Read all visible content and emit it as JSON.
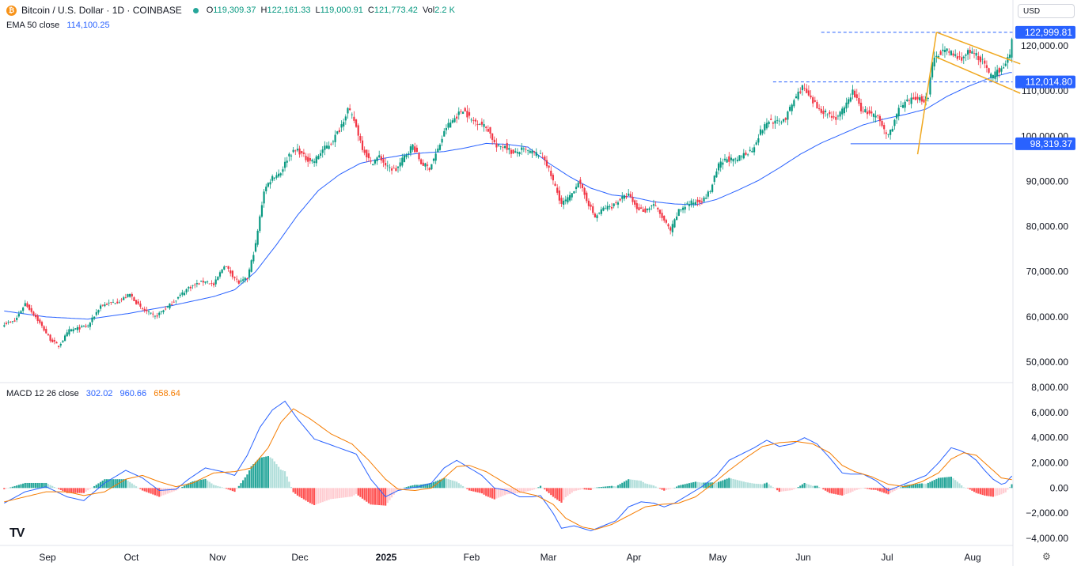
{
  "header": {
    "coin_glyph": "₿",
    "symbol": "Bitcoin / U.S. Dollar · 1D · COINBASE",
    "open_label": "O",
    "open": "119,309.37",
    "high_label": "H",
    "high": "122,161.33",
    "low_label": "L",
    "low": "119,000.91",
    "close_label": "C",
    "close": "121,773.42",
    "vol_label": "Vol",
    "vol": "2.2 K"
  },
  "ema": {
    "label": "EMA 50 close",
    "value": "114,100.25"
  },
  "macd": {
    "label": "MACD 12 26 close",
    "hist": "302.02",
    "macd": "960.66",
    "signal": "658.64"
  },
  "currency": "USD",
  "logo": "TV",
  "settings_icon": "gear-icon",
  "colors": {
    "up": "#089981",
    "down": "#f23645",
    "ema": "#2962ff",
    "signal": "#f57c00",
    "pattern": "#f0a81f",
    "badge": "#2962ff"
  },
  "chart_data": [
    {
      "type": "candlestick",
      "title": "Bitcoin / U.S. Dollar · 1D · COINBASE",
      "yticks": [
        50000,
        60000,
        70000,
        80000,
        90000,
        100000,
        110000,
        120000
      ],
      "ytick_labels": [
        "50,000.00",
        "60,000.00",
        "70,000.00",
        "80,000.00",
        "90,000.00",
        "100,000.00",
        "110,000.00",
        "120,000.00"
      ],
      "ylim": [
        44500,
        125500
      ],
      "xticks": [
        "Sep",
        "Oct",
        "Nov",
        "Dec",
        "2025",
        "Feb",
        "Mar",
        "Apr",
        "May",
        "Jun",
        "Jul",
        "Aug"
      ],
      "price_anchors": [
        [
          0,
          58500
        ],
        [
          5,
          59000
        ],
        [
          10,
          63000
        ],
        [
          15,
          60000
        ],
        [
          22,
          55000
        ],
        [
          26,
          53500
        ],
        [
          31,
          57000
        ],
        [
          40,
          58000
        ],
        [
          46,
          62500
        ],
        [
          55,
          63500
        ],
        [
          60,
          65000
        ],
        [
          65,
          62000
        ],
        [
          72,
          60000
        ],
        [
          80,
          63000
        ],
        [
          88,
          66500
        ],
        [
          96,
          68000
        ],
        [
          100,
          67000
        ],
        [
          105,
          71500
        ],
        [
          112,
          67500
        ],
        [
          116,
          68500
        ],
        [
          120,
          76000
        ],
        [
          124,
          88000
        ],
        [
          128,
          91000
        ],
        [
          132,
          92000
        ],
        [
          136,
          96000
        ],
        [
          140,
          97000
        ],
        [
          144,
          95000
        ],
        [
          148,
          94500
        ],
        [
          152,
          97000
        ],
        [
          156,
          98500
        ],
        [
          160,
          101500
        ],
        [
          164,
          106000
        ],
        [
          167,
          103500
        ],
        [
          171,
          97500
        ],
        [
          175,
          94000
        ],
        [
          179,
          95500
        ],
        [
          183,
          93000
        ],
        [
          187,
          92500
        ],
        [
          191,
          95500
        ],
        [
          195,
          98000
        ],
        [
          199,
          94000
        ],
        [
          203,
          93000
        ],
        [
          207,
          97000
        ],
        [
          211,
          102000
        ],
        [
          215,
          104000
        ],
        [
          219,
          106000
        ],
        [
          223,
          103500
        ],
        [
          227,
          103000
        ],
        [
          231,
          101500
        ],
        [
          235,
          97500
        ],
        [
          239,
          98000
        ],
        [
          243,
          96000
        ],
        [
          247,
          97000
        ],
        [
          251,
          96500
        ],
        [
          255,
          96000
        ],
        [
          258,
          95000
        ],
        [
          262,
          90000
        ],
        [
          266,
          85000
        ],
        [
          270,
          86500
        ],
        [
          274,
          90000
        ],
        [
          278,
          86000
        ],
        [
          282,
          82000
        ],
        [
          286,
          84000
        ],
        [
          290,
          84500
        ],
        [
          294,
          86000
        ],
        [
          298,
          87000
        ],
        [
          302,
          84000
        ],
        [
          306,
          83500
        ],
        [
          310,
          85000
        ],
        [
          314,
          82000
        ],
        [
          318,
          79000
        ],
        [
          322,
          83500
        ],
        [
          326,
          85000
        ],
        [
          330,
          85500
        ],
        [
          334,
          86000
        ],
        [
          337,
          88000
        ],
        [
          341,
          93500
        ],
        [
          345,
          95000
        ],
        [
          349,
          94500
        ],
        [
          353,
          96000
        ],
        [
          357,
          97000
        ],
        [
          361,
          101000
        ],
        [
          365,
          103500
        ],
        [
          369,
          103000
        ],
        [
          373,
          104000
        ],
        [
          377,
          108000
        ],
        [
          381,
          111000
        ],
        [
          385,
          108000
        ],
        [
          389,
          106000
        ],
        [
          393,
          105000
        ],
        [
          397,
          104000
        ],
        [
          401,
          106000
        ],
        [
          405,
          110000
        ],
        [
          409,
          106000
        ],
        [
          413,
          105000
        ],
        [
          417,
          104000
        ],
        [
          421,
          100500
        ],
        [
          423,
          101000
        ],
        [
          427,
          106000
        ],
        [
          431,
          107500
        ],
        [
          435,
          108500
        ],
        [
          439,
          108000
        ],
        [
          441,
          109000
        ],
        [
          443,
          116000
        ],
        [
          445,
          118000
        ],
        [
          448,
          119000
        ],
        [
          452,
          118500
        ],
        [
          456,
          117000
        ],
        [
          460,
          118500
        ],
        [
          464,
          118000
        ],
        [
          468,
          116000
        ],
        [
          470,
          113500
        ],
        [
          472,
          113000
        ],
        [
          474,
          114500
        ],
        [
          476,
          115000
        ],
        [
          478,
          116500
        ],
        [
          480,
          117500
        ],
        [
          481,
          121700
        ]
      ],
      "ema50_anchors": [
        [
          0,
          61300
        ],
        [
          20,
          60000
        ],
        [
          40,
          59500
        ],
        [
          60,
          60800
        ],
        [
          80,
          62500
        ],
        [
          100,
          64500
        ],
        [
          110,
          66000
        ],
        [
          120,
          70000
        ],
        [
          130,
          76000
        ],
        [
          140,
          82500
        ],
        [
          150,
          88000
        ],
        [
          160,
          91500
        ],
        [
          170,
          94000
        ],
        [
          180,
          95000
        ],
        [
          190,
          95800
        ],
        [
          200,
          96300
        ],
        [
          210,
          96600
        ],
        [
          220,
          97400
        ],
        [
          230,
          98400
        ],
        [
          240,
          98200
        ],
        [
          250,
          97600
        ],
        [
          260,
          94000
        ],
        [
          270,
          91000
        ],
        [
          280,
          88500
        ],
        [
          290,
          87000
        ],
        [
          300,
          86500
        ],
        [
          310,
          85500
        ],
        [
          320,
          85000
        ],
        [
          330,
          84800
        ],
        [
          340,
          86000
        ],
        [
          350,
          88000
        ],
        [
          360,
          90200
        ],
        [
          370,
          93000
        ],
        [
          380,
          96000
        ],
        [
          390,
          98500
        ],
        [
          400,
          100500
        ],
        [
          410,
          102500
        ],
        [
          420,
          103800
        ],
        [
          430,
          104800
        ],
        [
          440,
          106000
        ],
        [
          450,
          108800
        ],
        [
          460,
          111000
        ],
        [
          470,
          112800
        ],
        [
          480,
          114100
        ]
      ],
      "annotations": {
        "ath_level": {
          "value": 122999.81,
          "label": "122,999.81"
        },
        "support_level": {
          "value": 112014.8,
          "label": "112,014.80"
        },
        "swing_low_level": {
          "value": 98319.37,
          "label": "98,319.37"
        },
        "flagpole": [
          [
            436,
            96000
          ],
          [
            445,
            123000
          ]
        ],
        "flag_upper": [
          [
            445,
            123000
          ],
          [
            485,
            116000
          ]
        ],
        "flag_lower": [
          [
            445,
            117500
          ],
          [
            485,
            109500
          ]
        ]
      },
      "grid": false
    },
    {
      "type": "macd",
      "title": "MACD 12 26 close",
      "yticks": [
        -4000,
        -2000,
        0,
        2000,
        4000,
        6000,
        8000
      ],
      "ytick_labels": [
        "−4,000.00",
        "−2,000.00",
        "0.00",
        "2,000.00",
        "4,000.00",
        "6,000.00",
        "8,000.00"
      ],
      "ylim": [
        -4300,
        8000
      ],
      "macd_anchors": [
        [
          0,
          -1200
        ],
        [
          10,
          -300
        ],
        [
          20,
          100
        ],
        [
          30,
          -700
        ],
        [
          38,
          -1000
        ],
        [
          48,
          400
        ],
        [
          58,
          1400
        ],
        [
          66,
          800
        ],
        [
          74,
          -200
        ],
        [
          82,
          -100
        ],
        [
          88,
          700
        ],
        [
          96,
          1600
        ],
        [
          104,
          1300
        ],
        [
          110,
          1000
        ],
        [
          116,
          2600
        ],
        [
          122,
          4800
        ],
        [
          128,
          6200
        ],
        [
          134,
          6900
        ],
        [
          140,
          5500
        ],
        [
          148,
          3900
        ],
        [
          158,
          3300
        ],
        [
          168,
          2700
        ],
        [
          175,
          700
        ],
        [
          182,
          -700
        ],
        [
          188,
          -200
        ],
        [
          194,
          0
        ],
        [
          198,
          100
        ],
        [
          204,
          400
        ],
        [
          210,
          1600
        ],
        [
          216,
          2200
        ],
        [
          222,
          1600
        ],
        [
          228,
          1000
        ],
        [
          234,
          0
        ],
        [
          240,
          -200
        ],
        [
          246,
          -700
        ],
        [
          252,
          -700
        ],
        [
          256,
          -600
        ],
        [
          262,
          -2000
        ],
        [
          266,
          -3200
        ],
        [
          272,
          -3000
        ],
        [
          280,
          -3400
        ],
        [
          286,
          -3000
        ],
        [
          292,
          -2600
        ],
        [
          298,
          -1500
        ],
        [
          304,
          -1100
        ],
        [
          310,
          -1200
        ],
        [
          315,
          -1500
        ],
        [
          320,
          -1200
        ],
        [
          326,
          -600
        ],
        [
          333,
          100
        ],
        [
          340,
          1000
        ],
        [
          346,
          2200
        ],
        [
          352,
          2700
        ],
        [
          358,
          3200
        ],
        [
          364,
          3800
        ],
        [
          370,
          3300
        ],
        [
          376,
          3500
        ],
        [
          382,
          4000
        ],
        [
          388,
          3500
        ],
        [
          394,
          2400
        ],
        [
          400,
          1200
        ],
        [
          404,
          1100
        ],
        [
          410,
          1100
        ],
        [
          416,
          600
        ],
        [
          422,
          -200
        ],
        [
          428,
          200
        ],
        [
          434,
          600
        ],
        [
          440,
          1000
        ],
        [
          446,
          2000
        ],
        [
          452,
          3200
        ],
        [
          456,
          3000
        ],
        [
          460,
          2700
        ],
        [
          464,
          2200
        ],
        [
          468,
          1400
        ],
        [
          472,
          700
        ],
        [
          476,
          300
        ],
        [
          478,
          400
        ],
        [
          481,
          960
        ]
      ],
      "signal_anchors": [
        [
          0,
          -1100
        ],
        [
          10,
          -700
        ],
        [
          20,
          -300
        ],
        [
          30,
          -300
        ],
        [
          38,
          -600
        ],
        [
          48,
          -300
        ],
        [
          58,
          700
        ],
        [
          66,
          1000
        ],
        [
          74,
          500
        ],
        [
          82,
          100
        ],
        [
          90,
          400
        ],
        [
          100,
          1200
        ],
        [
          110,
          1300
        ],
        [
          118,
          1600
        ],
        [
          126,
          3200
        ],
        [
          132,
          5200
        ],
        [
          138,
          6300
        ],
        [
          146,
          5500
        ],
        [
          156,
          4300
        ],
        [
          166,
          3500
        ],
        [
          174,
          2200
        ],
        [
          182,
          700
        ],
        [
          188,
          -100
        ],
        [
          196,
          -200
        ],
        [
          204,
          0
        ],
        [
          210,
          800
        ],
        [
          216,
          1700
        ],
        [
          222,
          1800
        ],
        [
          230,
          1300
        ],
        [
          238,
          500
        ],
        [
          246,
          -300
        ],
        [
          254,
          -600
        ],
        [
          262,
          -1300
        ],
        [
          268,
          -2400
        ],
        [
          276,
          -3100
        ],
        [
          282,
          -3300
        ],
        [
          290,
          -2900
        ],
        [
          298,
          -2200
        ],
        [
          306,
          -1500
        ],
        [
          314,
          -1300
        ],
        [
          322,
          -1200
        ],
        [
          330,
          -700
        ],
        [
          338,
          300
        ],
        [
          346,
          1400
        ],
        [
          354,
          2400
        ],
        [
          362,
          3300
        ],
        [
          370,
          3600
        ],
        [
          378,
          3700
        ],
        [
          386,
          3500
        ],
        [
          394,
          2800
        ],
        [
          400,
          1800
        ],
        [
          406,
          1300
        ],
        [
          414,
          900
        ],
        [
          422,
          300
        ],
        [
          430,
          100
        ],
        [
          438,
          500
        ],
        [
          446,
          1200
        ],
        [
          452,
          2300
        ],
        [
          458,
          2800
        ],
        [
          464,
          2600
        ],
        [
          470,
          1700
        ],
        [
          476,
          800
        ],
        [
          481,
          660
        ]
      ]
    }
  ]
}
